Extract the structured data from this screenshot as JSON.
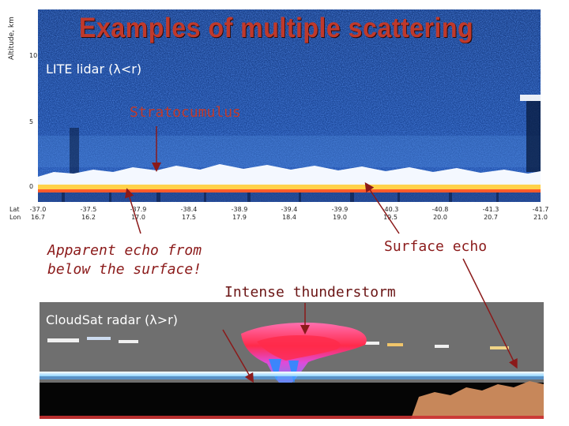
{
  "title": "Examples of multiple scattering",
  "lidar": {
    "label": "LITE lidar (λ<r)",
    "y_axis_title": "Altitude, km",
    "y_ticks": [
      "10",
      "5",
      "0"
    ],
    "row_labels": [
      "Lat",
      "Lon"
    ],
    "lat_values": [
      "-37.0",
      "-37.5",
      "-37.9",
      "-38.4",
      "-38.9",
      "-39.4",
      "-39.9",
      "-40.3",
      "-40.8",
      "-41.3",
      "-41.7"
    ],
    "lon_values": [
      "16.7",
      "16.2",
      "17.0",
      "17.5",
      "17.9",
      "18.4",
      "19.0",
      "19.5",
      "20.0",
      "20.7",
      "21.0"
    ]
  },
  "radar": {
    "label": "CloudSat radar (λ>r)"
  },
  "annotations": {
    "stratocumulus": "Stratocumulus",
    "apparent_echo_line1": "Apparent echo from",
    "apparent_echo_line2": "below the surface!",
    "surface_echo": "Surface echo",
    "thunderstorm": "Intense thunderstorm"
  },
  "colors": {
    "title": "#c0392b",
    "annotation_red": "#c0392b",
    "annotation_dark_red": "#8b1a1a",
    "lidar_background": "#12326e",
    "radar_background": "#6f6f6f"
  }
}
